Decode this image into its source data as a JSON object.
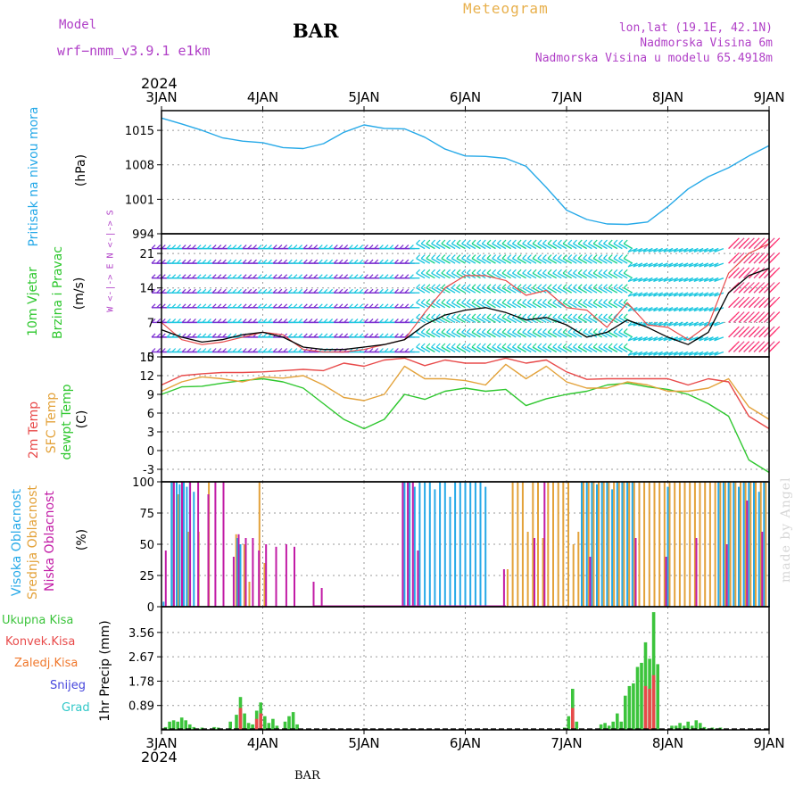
{
  "header": {
    "title": "Meteogram",
    "station": "BAR",
    "model_label": "Model",
    "model_name": "wrf−nmm_v3.9.1  e1km",
    "lonlat": "lon,lat (19.1E, 42.1N)",
    "elevation": "Nadmorska Visina 6m",
    "model_elevation": "Nadmorska Visina u modelu 65.4918m",
    "year": "2024",
    "signature": "made by Angel",
    "footer_station": "BAR"
  },
  "colors": {
    "pressure": "#26a9e8",
    "temp2m": "#e84a4a",
    "sfc_temp": "#e3a23a",
    "dewpoint": "#2ec72e",
    "high_cloud": "#26a9e8",
    "mid_cloud": "#e3a23a",
    "low_cloud": "#c21ca6",
    "total_precip": "#3cc43c",
    "conv_precip": "#e84a4a",
    "frozen_precip": "#f0782d",
    "snow": "#4646dc",
    "hail": "#30c8c8"
  },
  "chart_data": [
    {
      "type": "line",
      "name": "pressure",
      "ylabel_main": "Pritisak na nivou mora",
      "ylabel_unit": "(hPa)",
      "ylim": [
        994,
        1019
      ],
      "yticks": [
        994,
        1001,
        1008,
        1015
      ],
      "x_unit": "days since 3 JAN 2024 00UTC",
      "series": [
        {
          "name": "Pritisak na nivou mora",
          "x": [
            0,
            0.2,
            0.4,
            0.6,
            0.8,
            1.0,
            1.2,
            1.4,
            1.6,
            1.8,
            2.0,
            2.2,
            2.4,
            2.6,
            2.8,
            3.0,
            3.2,
            3.4,
            3.6,
            3.8,
            4.0,
            4.2,
            4.4,
            4.6,
            4.8,
            5.0,
            5.2,
            5.4,
            5.6,
            5.8,
            6.0
          ],
          "y": [
            1017.5,
            1016.3,
            1015.0,
            1013.5,
            1012.8,
            1012.5,
            1011.5,
            1011.3,
            1012.3,
            1014.6,
            1016.1,
            1015.4,
            1015.3,
            1013.6,
            1011.2,
            1009.8,
            1009.7,
            1009.3,
            1007.7,
            1003.4,
            998.8,
            996.9,
            996.0,
            995.9,
            996.4,
            999.5,
            1003.1,
            1005.6,
            1007.4,
            1009.8,
            1011.9
          ]
        }
      ]
    },
    {
      "type": "line",
      "name": "wind",
      "ylabel_main": "10m Vjetar",
      "ylabel_sub": "Brzina i Pravac",
      "ylabel_unit": "(m/s)",
      "direction_legend": "W <-|-> E  N <-|-> S",
      "ylim": [
        0,
        25
      ],
      "yticks": [
        0,
        7,
        14,
        21
      ],
      "series": [
        {
          "name": "speed",
          "x": [
            0,
            0.2,
            0.4,
            0.6,
            0.8,
            1.0,
            1.2,
            1.4,
            1.6,
            1.8,
            2.0,
            2.2,
            2.4,
            2.6,
            2.8,
            3.0,
            3.2,
            3.4,
            3.6,
            3.8,
            4.0,
            4.2,
            4.4,
            4.6,
            4.8,
            5.0,
            5.2,
            5.4,
            5.6,
            5.8,
            6.0
          ],
          "y": [
            5.5,
            4.0,
            3.0,
            3.5,
            4.5,
            5.0,
            4.0,
            2.0,
            1.5,
            1.5,
            2.0,
            2.5,
            3.5,
            6.5,
            8.5,
            9.5,
            10.0,
            9.0,
            7.5,
            8.0,
            6.5,
            4.0,
            5.0,
            7.5,
            6.0,
            4.0,
            2.5,
            5.0,
            13.0,
            16.5,
            18.0
          ]
        },
        {
          "name": "gust",
          "x": [
            0,
            0.2,
            0.4,
            0.6,
            0.8,
            1.0,
            1.2,
            1.4,
            1.6,
            1.8,
            2.0,
            2.2,
            2.4,
            2.6,
            2.8,
            3.0,
            3.2,
            3.4,
            3.6,
            3.8,
            4.0,
            4.2,
            4.4,
            4.6,
            4.8,
            5.0,
            5.2,
            5.4,
            5.6,
            5.8,
            6.0
          ],
          "y": [
            7.0,
            3.5,
            2.5,
            3.0,
            4.0,
            5.0,
            4.5,
            1.5,
            1.0,
            1.0,
            1.5,
            2.5,
            3.5,
            9.0,
            14.0,
            16.5,
            16.5,
            15.5,
            12.5,
            13.5,
            10.0,
            9.5,
            6.0,
            11.0,
            6.5,
            6.0,
            3.5,
            6.5,
            17.0,
            21.0,
            23.0
          ]
        }
      ]
    },
    {
      "type": "line",
      "name": "temperature",
      "ylabel_lines": [
        "2m Temp",
        "SFC Temp",
        "dewpt Temp"
      ],
      "ylabel_unit": "(C)",
      "ylim": [
        -5,
        15
      ],
      "yticks": [
        -3,
        0,
        3,
        6,
        9,
        12,
        15
      ],
      "series": [
        {
          "name": "2m Temp",
          "x": [
            0,
            0.2,
            0.4,
            0.6,
            0.8,
            1.0,
            1.2,
            1.4,
            1.6,
            1.8,
            2.0,
            2.2,
            2.4,
            2.6,
            2.8,
            3.0,
            3.2,
            3.4,
            3.6,
            3.8,
            4.0,
            4.2,
            4.4,
            4.6,
            4.8,
            5.0,
            5.2,
            5.4,
            5.6,
            5.8,
            6.0
          ],
          "y": [
            10.5,
            12.0,
            12.3,
            12.5,
            12.5,
            12.6,
            12.8,
            13.0,
            12.8,
            14.0,
            13.5,
            14.5,
            14.8,
            13.6,
            14.5,
            14.0,
            14.0,
            14.8,
            14.0,
            14.5,
            12.6,
            11.4,
            11.5,
            11.5,
            11.5,
            11.5,
            10.5,
            11.5,
            11.0,
            5.5,
            3.5
          ]
        },
        {
          "name": "SFC Temp",
          "x": [
            0,
            0.2,
            0.4,
            0.6,
            0.8,
            1.0,
            1.2,
            1.4,
            1.6,
            1.8,
            2.0,
            2.2,
            2.4,
            2.6,
            2.8,
            3.0,
            3.2,
            3.4,
            3.6,
            3.8,
            4.0,
            4.2,
            4.4,
            4.6,
            4.8,
            5.0,
            5.2,
            5.4,
            5.6,
            5.8,
            6.0
          ],
          "y": [
            9.5,
            11.0,
            11.8,
            11.5,
            11.0,
            11.8,
            11.6,
            12.0,
            10.5,
            8.5,
            8.0,
            9.0,
            13.5,
            11.5,
            11.5,
            11.2,
            10.5,
            13.8,
            11.5,
            13.5,
            11.0,
            10.0,
            10.0,
            11.0,
            10.5,
            9.5,
            9.5,
            10.0,
            11.5,
            7.0,
            5.0
          ]
        },
        {
          "name": "dewpt Temp",
          "x": [
            0,
            0.2,
            0.4,
            0.6,
            0.8,
            1.0,
            1.2,
            1.4,
            1.6,
            1.8,
            2.0,
            2.2,
            2.4,
            2.6,
            2.8,
            3.0,
            3.2,
            3.4,
            3.6,
            3.8,
            4.0,
            4.2,
            4.4,
            4.6,
            4.8,
            5.0,
            5.2,
            5.4,
            5.6,
            5.8,
            6.0
          ],
          "y": [
            9.0,
            10.2,
            10.3,
            10.8,
            11.2,
            11.5,
            11.0,
            10.0,
            7.5,
            5.0,
            3.5,
            5.0,
            9.0,
            8.2,
            9.5,
            10.0,
            9.5,
            9.8,
            7.2,
            8.3,
            9.0,
            9.5,
            10.5,
            10.8,
            10.2,
            9.8,
            9.0,
            7.5,
            5.5,
            -1.5,
            -3.5
          ]
        }
      ]
    },
    {
      "type": "bar",
      "name": "cloud_cover",
      "ylabel_lines": [
        "Visoka Oblacnost",
        "Srednja Oblacnost",
        "Niska Oblacnost"
      ],
      "ylabel_unit": "(%)",
      "ylim": [
        0,
        100
      ],
      "yticks": [
        0,
        25,
        50,
        75,
        100
      ],
      "series": [
        {
          "name": "Visoka Oblacnost",
          "x": [
            0.02,
            0.1,
            0.12,
            0.15,
            0.18,
            0.22,
            0.25,
            0.28,
            0.32,
            0.4,
            0.75,
            0.78,
            2.4,
            2.45,
            2.5,
            2.55,
            2.6,
            2.65,
            2.7,
            2.75,
            2.8,
            2.85,
            2.9,
            2.95,
            3.0,
            3.05,
            3.1,
            3.15,
            3.2,
            4.15,
            4.2,
            4.25,
            4.3,
            4.35,
            4.4,
            4.45,
            4.5,
            4.55,
            4.6,
            4.65,
            5.0,
            5.5,
            5.55,
            5.6,
            5.65,
            5.7,
            5.75,
            5.8,
            5.85,
            5.9,
            5.95,
            6.0
          ],
          "y": [
            4,
            100,
            100,
            100,
            98,
            100,
            96,
            100,
            92,
            0,
            55,
            50,
            100,
            100,
            96,
            100,
            100,
            100,
            94,
            100,
            100,
            88,
            100,
            100,
            100,
            100,
            100,
            100,
            96,
            100,
            100,
            100,
            98,
            100,
            100,
            94,
            100,
            100,
            100,
            100,
            96,
            100,
            100,
            100,
            100,
            96,
            100,
            100,
            100,
            92,
            100,
            100
          ]
        },
        {
          "name": "Srednja Oblacnost",
          "x": [
            0.1,
            0.15,
            0.2,
            0.25,
            0.35,
            0.45,
            0.72,
            0.8,
            0.85,
            0.95,
            1.0,
            3.4,
            3.45,
            3.5,
            3.55,
            3.6,
            3.65,
            3.7,
            3.75,
            3.8,
            3.85,
            3.9,
            3.95,
            4.0,
            4.05,
            4.1,
            4.15,
            4.2,
            4.25,
            4.3,
            4.35,
            4.4,
            4.45,
            4.5,
            4.55,
            4.6,
            4.65,
            4.7,
            4.75,
            4.8,
            4.85,
            4.9,
            4.95,
            5.0,
            5.05,
            5.1,
            5.15,
            5.2,
            5.25,
            5.3,
            5.35,
            5.4,
            5.45,
            5.5,
            5.55,
            5.6,
            5.65,
            5.7,
            5.75,
            5.8,
            5.85,
            5.9,
            5.95
          ],
          "y": [
            100,
            90,
            80,
            60,
            60,
            100,
            58,
            50,
            20,
            100,
            35,
            30,
            100,
            100,
            100,
            60,
            100,
            100,
            55,
            100,
            100,
            100,
            100,
            100,
            50,
            60,
            100,
            100,
            100,
            100,
            100,
            100,
            100,
            100,
            100,
            100,
            100,
            100,
            100,
            100,
            100,
            100,
            100,
            100,
            100,
            100,
            100,
            100,
            100,
            100,
            100,
            100,
            100,
            100,
            100,
            100,
            100,
            100,
            100,
            100,
            100,
            100,
            100
          ]
        },
        {
          "name": "Niska Oblacnost",
          "x": [
            0.06,
            0.14,
            0.22,
            0.3,
            0.38,
            0.48,
            0.55,
            0.63,
            0.73,
            0.78,
            0.85,
            0.92,
            0.98,
            1.05,
            1.15,
            1.25,
            1.33,
            1.52,
            1.6,
            2.4,
            2.45,
            2.5,
            2.55,
            3.4,
            3.7,
            3.8,
            4.25,
            4.7,
            5.0,
            5.3,
            5.6,
            5.8,
            5.95
          ],
          "y": [
            45,
            100,
            100,
            100,
            100,
            90,
            100,
            100,
            40,
            58,
            55,
            55,
            45,
            50,
            48,
            50,
            48,
            20,
            15,
            100,
            100,
            100,
            45,
            30,
            55,
            100,
            40,
            55,
            40,
            55,
            50,
            85,
            60
          ]
        }
      ]
    },
    {
      "type": "bar",
      "name": "precipitation",
      "ylabel_legend": [
        "Ukupna  Kisa",
        "Konvek.Kisa",
        "Zaledj.Kisa",
        "Snijeg",
        "Grad"
      ],
      "ylabel_unit": "1hr Precip (mm)",
      "ylim": [
        0,
        4.5
      ],
      "yticks": [
        0.89,
        1.78,
        2.67,
        3.56
      ],
      "x": [
        "3JAN",
        "4JAN",
        "5JAN",
        "6JAN",
        "7JAN",
        "8JAN",
        "9JAN"
      ],
      "year": "2024",
      "series": [
        {
          "name": "Ukupna  Kisa",
          "x": [
            0.04,
            0.08,
            0.12,
            0.16,
            0.2,
            0.24,
            0.28,
            0.32,
            0.36,
            0.4,
            0.52,
            0.56,
            0.68,
            0.74,
            0.78,
            0.82,
            0.86,
            0.9,
            0.94,
            0.98,
            1.02,
            1.06,
            1.1,
            1.14,
            1.22,
            1.26,
            1.3,
            1.34,
            3.98,
            4.02,
            4.06,
            4.1,
            4.34,
            4.38,
            4.42,
            4.46,
            4.5,
            4.54,
            4.58,
            4.62,
            4.66,
            4.7,
            4.74,
            4.78,
            4.82,
            4.86,
            4.9,
            5.04,
            5.08,
            5.12,
            5.16,
            5.2,
            5.24,
            5.28,
            5.32,
            5.36,
            5.4,
            5.44,
            5.48,
            5.52
          ],
          "y": [
            0.1,
            0.3,
            0.35,
            0.3,
            0.45,
            0.35,
            0.2,
            0.1,
            0.05,
            0.08,
            0.1,
            0.08,
            0.3,
            0.55,
            1.2,
            0.6,
            0.25,
            0.2,
            0.7,
            1.0,
            0.5,
            0.25,
            0.4,
            0.15,
            0.3,
            0.5,
            0.65,
            0.2,
            0.08,
            0.5,
            1.5,
            0.3,
            0.2,
            0.25,
            0.15,
            0.3,
            0.6,
            0.3,
            1.25,
            1.6,
            1.7,
            2.3,
            2.45,
            3.2,
            2.6,
            4.3,
            2.4,
            0.15,
            0.15,
            0.25,
            0.15,
            0.3,
            0.15,
            0.35,
            0.25,
            0.1,
            0.05,
            0.08,
            0.05,
            0.08
          ]
        },
        {
          "name": "Konvek.Kisa",
          "x": [
            0.78,
            0.94,
            0.98,
            4.06,
            4.78,
            4.82,
            4.86
          ],
          "y": [
            0.8,
            0.4,
            0.6,
            0.8,
            1.6,
            1.5,
            2.0
          ]
        }
      ]
    }
  ]
}
